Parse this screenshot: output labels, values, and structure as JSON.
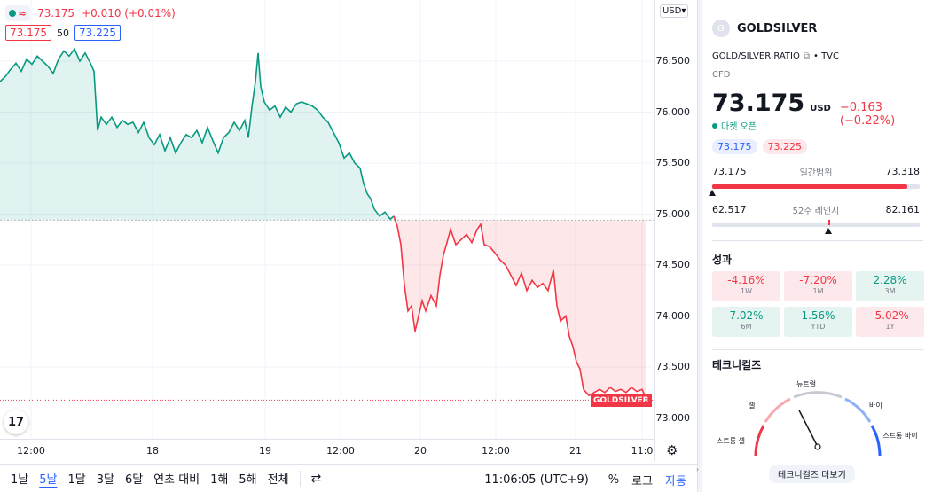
{
  "legend": {
    "wave_icon": "≈",
    "price": "73.175",
    "change": "+0.010 (+0.01%)",
    "bid": "73.175",
    "spread": "50",
    "ask": "73.225"
  },
  "price_axis": {
    "currency": "USD",
    "labels": [
      "76.500",
      "76.000",
      "75.500",
      "75.000",
      "74.500",
      "74.000",
      "73.500",
      "73.000"
    ],
    "tag": "GOLDSILVER"
  },
  "time_axis": {
    "labels": [
      "12:00",
      "18",
      "19",
      "12:00",
      "20",
      "12:00",
      "21",
      "11:0"
    ]
  },
  "bottom_bar": {
    "ranges": [
      "1날",
      "5날",
      "1달",
      "3달",
      "6달",
      "연초 대비",
      "1해",
      "5해",
      "전체"
    ],
    "active_range": "5날",
    "clock": "11:06:05 (UTC+9)",
    "percent": "%",
    "log": "로그",
    "auto": "자동"
  },
  "side": {
    "symbol_icon": "G",
    "ticker": "GOLDSILVER",
    "description": "GOLD/SILVER RATIO",
    "external_icon": "⧉",
    "exchange": "• TVC",
    "type": "CFD",
    "price": "73.175",
    "currency": "USD",
    "change": "−0.163 (−0.22%)",
    "market_status": "마켓 오픈",
    "bid": "73.175",
    "ask": "73.225",
    "day_range": {
      "low": "73.175",
      "label": "일간범위",
      "high": "73.318"
    },
    "week52_range": {
      "low": "62.517",
      "label": "52주 레인지",
      "high": "82.161"
    },
    "performance_title": "성과",
    "performance": [
      {
        "value": "-4.16%",
        "label": "1W",
        "sign": "neg"
      },
      {
        "value": "-7.20%",
        "label": "1M",
        "sign": "neg"
      },
      {
        "value": "2.28%",
        "label": "3M",
        "sign": "pos"
      },
      {
        "value": "7.02%",
        "label": "6M",
        "sign": "pos"
      },
      {
        "value": "1.56%",
        "label": "YTD",
        "sign": "pos"
      },
      {
        "value": "-5.02%",
        "label": "1Y",
        "sign": "neg"
      }
    ],
    "technicals_title": "테크니컬즈",
    "gauge": {
      "neutral": "뉴트럴",
      "sell": "셀",
      "buy": "바이",
      "strong_sell": "스트롱 셀",
      "strong_buy": "스트롱 바이",
      "needle_level": 0.35
    },
    "technicals_button": "테크니컬즈 더보기"
  },
  "colors": {
    "up": "#089981",
    "down": "#f23645",
    "accent": "#2962ff"
  },
  "chart_data": {
    "type": "area",
    "title": "GOLD/SILVER RATIO",
    "ylabel": "USD",
    "ylim": [
      72.8,
      76.7
    ],
    "baseline": 74.94,
    "x_ticks": [
      "12:00",
      "18",
      "19",
      "12:00",
      "20",
      "12:00",
      "21",
      "11:0"
    ],
    "points": [
      [
        0,
        76.3
      ],
      [
        6,
        76.35
      ],
      [
        12,
        76.42
      ],
      [
        18,
        76.48
      ],
      [
        24,
        76.4
      ],
      [
        30,
        76.52
      ],
      [
        36,
        76.47
      ],
      [
        42,
        76.55
      ],
      [
        48,
        76.5
      ],
      [
        54,
        76.45
      ],
      [
        60,
        76.38
      ],
      [
        66,
        76.52
      ],
      [
        72,
        76.6
      ],
      [
        78,
        76.55
      ],
      [
        84,
        76.62
      ],
      [
        90,
        76.5
      ],
      [
        96,
        76.58
      ],
      [
        102,
        76.48
      ],
      [
        106,
        76.4
      ],
      [
        110,
        75.82
      ],
      [
        114,
        75.95
      ],
      [
        120,
        75.88
      ],
      [
        126,
        75.95
      ],
      [
        132,
        75.85
      ],
      [
        138,
        75.92
      ],
      [
        144,
        75.88
      ],
      [
        150,
        75.9
      ],
      [
        156,
        75.8
      ],
      [
        162,
        75.9
      ],
      [
        168,
        75.75
      ],
      [
        174,
        75.68
      ],
      [
        180,
        75.78
      ],
      [
        186,
        75.62
      ],
      [
        192,
        75.75
      ],
      [
        198,
        75.6
      ],
      [
        204,
        75.7
      ],
      [
        210,
        75.78
      ],
      [
        216,
        75.75
      ],
      [
        222,
        75.82
      ],
      [
        228,
        75.7
      ],
      [
        234,
        75.85
      ],
      [
        240,
        75.72
      ],
      [
        246,
        75.6
      ],
      [
        252,
        75.75
      ],
      [
        258,
        75.8
      ],
      [
        264,
        75.9
      ],
      [
        270,
        75.82
      ],
      [
        276,
        75.92
      ],
      [
        280,
        75.75
      ],
      [
        284,
        76.05
      ],
      [
        288,
        76.3
      ],
      [
        291,
        76.58
      ],
      [
        294,
        76.25
      ],
      [
        298,
        76.1
      ],
      [
        304,
        76.02
      ],
      [
        310,
        76.06
      ],
      [
        316,
        75.95
      ],
      [
        322,
        76.05
      ],
      [
        328,
        76.0
      ],
      [
        334,
        76.08
      ],
      [
        340,
        76.1
      ],
      [
        346,
        76.08
      ],
      [
        352,
        76.06
      ],
      [
        358,
        76.02
      ],
      [
        364,
        75.95
      ],
      [
        370,
        75.9
      ],
      [
        376,
        75.8
      ],
      [
        382,
        75.7
      ],
      [
        388,
        75.55
      ],
      [
        394,
        75.6
      ],
      [
        400,
        75.5
      ],
      [
        406,
        75.45
      ],
      [
        410,
        75.3
      ],
      [
        414,
        75.2
      ],
      [
        418,
        75.15
      ],
      [
        422,
        75.05
      ],
      [
        428,
        74.98
      ],
      [
        434,
        75.02
      ],
      [
        440,
        74.95
      ],
      [
        444,
        74.98
      ],
      [
        448,
        74.88
      ],
      [
        452,
        74.7
      ],
      [
        456,
        74.3
      ],
      [
        460,
        74.05
      ],
      [
        464,
        74.1
      ],
      [
        468,
        73.85
      ],
      [
        472,
        74.0
      ],
      [
        476,
        74.15
      ],
      [
        480,
        74.05
      ],
      [
        486,
        74.2
      ],
      [
        492,
        74.1
      ],
      [
        496,
        74.4
      ],
      [
        500,
        74.6
      ],
      [
        504,
        74.72
      ],
      [
        508,
        74.85
      ],
      [
        514,
        74.7
      ],
      [
        520,
        74.75
      ],
      [
        526,
        74.8
      ],
      [
        532,
        74.72
      ],
      [
        538,
        74.85
      ],
      [
        542,
        74.9
      ],
      [
        546,
        74.7
      ],
      [
        552,
        74.68
      ],
      [
        558,
        74.62
      ],
      [
        564,
        74.55
      ],
      [
        570,
        74.5
      ],
      [
        576,
        74.4
      ],
      [
        582,
        74.3
      ],
      [
        588,
        74.42
      ],
      [
        594,
        74.25
      ],
      [
        600,
        74.35
      ],
      [
        606,
        74.28
      ],
      [
        612,
        74.32
      ],
      [
        618,
        74.25
      ],
      [
        624,
        74.45
      ],
      [
        628,
        74.1
      ],
      [
        632,
        73.95
      ],
      [
        638,
        74.0
      ],
      [
        642,
        73.8
      ],
      [
        646,
        73.7
      ],
      [
        650,
        73.55
      ],
      [
        654,
        73.48
      ],
      [
        658,
        73.28
      ],
      [
        664,
        73.22
      ],
      [
        670,
        73.25
      ],
      [
        676,
        73.28
      ],
      [
        682,
        73.25
      ],
      [
        688,
        73.3
      ],
      [
        694,
        73.26
      ],
      [
        700,
        73.28
      ],
      [
        706,
        73.25
      ],
      [
        712,
        73.3
      ],
      [
        718,
        73.26
      ],
      [
        724,
        73.28
      ],
      [
        728,
        73.2
      ]
    ]
  }
}
